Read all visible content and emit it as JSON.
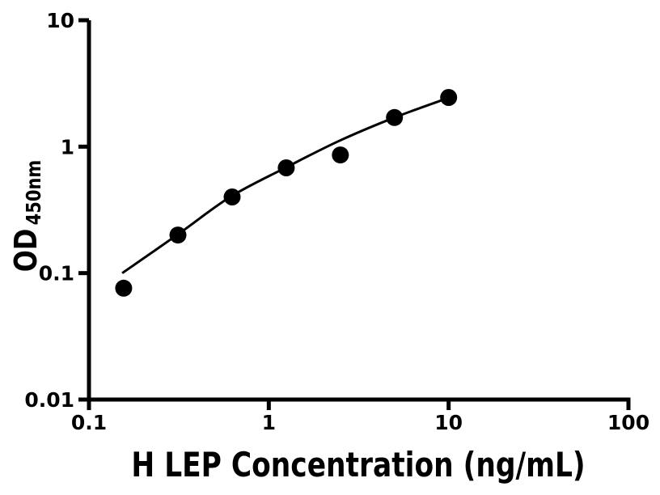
{
  "chart_data": {
    "type": "scatter",
    "subtype": "elisa-standard-curve-with-fit",
    "scale": "log-log",
    "title": "",
    "xlabel": "H LEP Concentration (ng/mL)",
    "ylabel_main": "OD",
    "ylabel_sub": "450nm",
    "xlim": [
      0.1,
      100
    ],
    "ylim": [
      0.01,
      10
    ],
    "x_ticks": {
      "values": [
        0.1,
        1,
        10,
        100
      ],
      "labels": [
        "0.1",
        "1",
        "10",
        "100"
      ]
    },
    "y_ticks": {
      "values": [
        0.01,
        0.1,
        1,
        10
      ],
      "labels": [
        "0.01",
        "0.1",
        "1",
        "10"
      ]
    },
    "grid": false,
    "legend": "none",
    "series": [
      {
        "name": "standards",
        "marker": "filled-circle",
        "color": "#000000",
        "x": [
          0.156,
          0.3125,
          0.625,
          1.25,
          2.5,
          5,
          10
        ],
        "y": [
          0.076,
          0.2,
          0.4,
          0.68,
          0.86,
          1.7,
          2.45
        ]
      }
    ],
    "fit_curve": {
      "name": "fitted-standard-curve",
      "color": "#000000",
      "x": [
        0.153,
        0.31,
        0.61,
        1.24,
        2.46,
        5.0,
        9.9
      ],
      "y": [
        0.1,
        0.201,
        0.4,
        0.682,
        1.11,
        1.7,
        2.42
      ]
    },
    "colors": {
      "foreground": "#000000",
      "background": "#ffffff"
    }
  }
}
